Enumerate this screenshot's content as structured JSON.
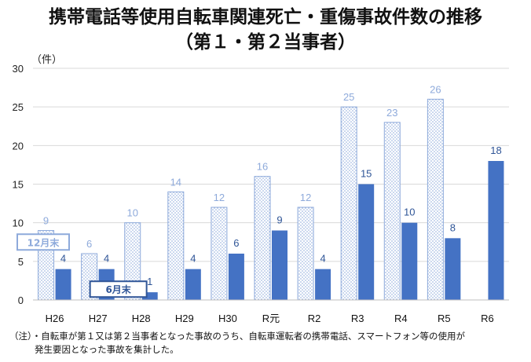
{
  "title": {
    "line1": "携帯電話等使用自転車関連死亡・重傷事故件数の推移",
    "line2": "（第１・第２当事者）"
  },
  "note": {
    "line1": "（注）・自転車が第１又は第２当事者となった事故のうち、自転車運転者の携帯電話、スマートフォン等の使用が",
    "line2": "発生要因となった事故を集計した。"
  },
  "colors": {
    "series1_fill": "#dbe4f3",
    "series1_stroke": "#8eaadb",
    "series1_label": "#8eaadb",
    "series2_fill": "#4472c4",
    "series2_label": "#2f5597",
    "callout_border_1": "#8eaadb",
    "callout_border_2": "#2f5597"
  },
  "chart_data": {
    "type": "bar",
    "categories": [
      "H26",
      "H27",
      "H28",
      "H29",
      "H30",
      "R元",
      "R2",
      "R3",
      "R4",
      "R5",
      "R6"
    ],
    "series": [
      {
        "values": [
          9,
          6,
          10,
          14,
          12,
          16,
          12,
          25,
          23,
          26,
          null
        ]
      },
      {
        "values": [
          4,
          4,
          1,
          4,
          6,
          9,
          4,
          15,
          10,
          8,
          18
        ]
      }
    ],
    "ylabel": "（件）",
    "ylim": [
      0,
      30
    ],
    "yticks": [
      0,
      5,
      10,
      15,
      20,
      25,
      30
    ],
    "grid": true,
    "annotations": [
      {
        "text": "12月末",
        "category": "H26",
        "series": 0
      },
      {
        "text": "6月末",
        "category": "H27",
        "series": 1
      }
    ]
  }
}
